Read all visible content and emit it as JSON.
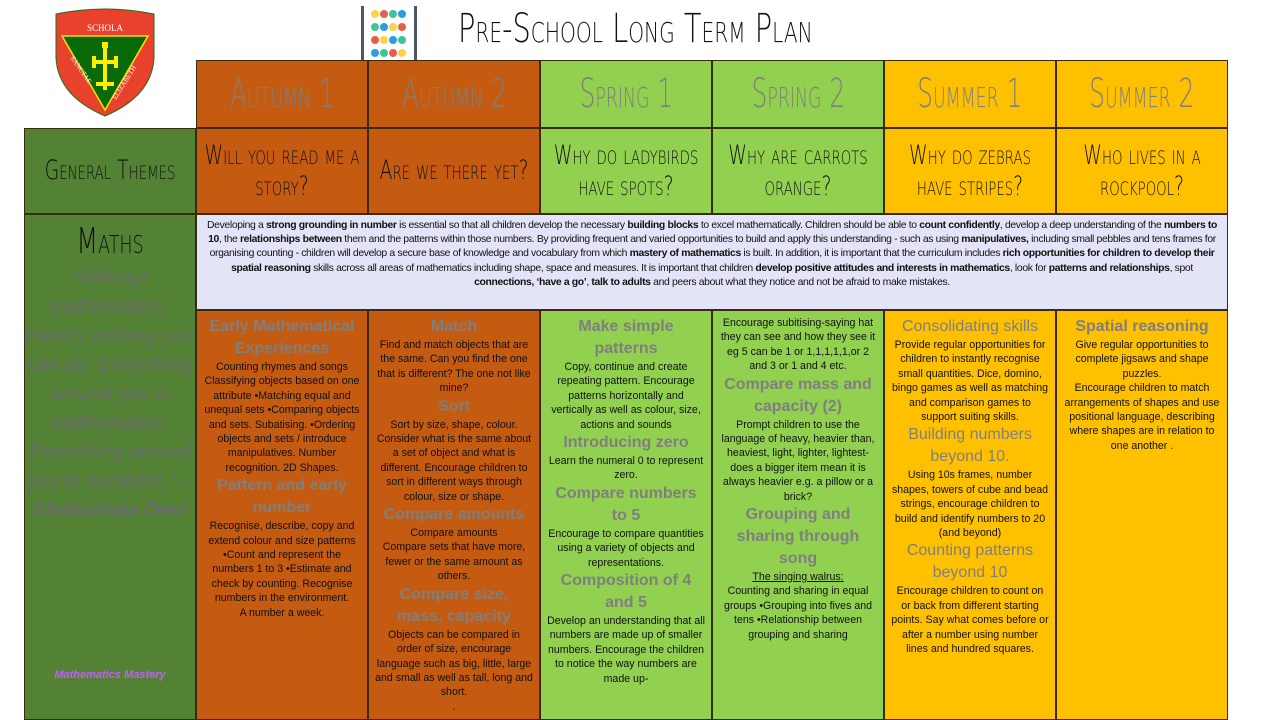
{
  "header": {
    "title": "Pre-School Long Term Plan",
    "logo_text": [
      "SCHOLA",
      "SANCTAE",
      "ELIZABETH"
    ],
    "logo_icon": "school-crest-icon",
    "decor_icon": "abacus-icon"
  },
  "colors": {
    "autumn": "#C55A11",
    "spring": "#92D050",
    "summer": "#FFC000",
    "sidebar": "#548235",
    "intro": "#E4E4F8",
    "heading": "#7F7F7F"
  },
  "terms": [
    "Autumn 1",
    "Autumn 2",
    "Spring 1",
    "Spring 2",
    "Summer 1",
    "Summer 2"
  ],
  "general_themes": {
    "label": "General Themes",
    "themes": [
      "Will you read me a story?",
      "Are we there yet?",
      "Why do ladybirds have spots?",
      "Why are carrots orange?",
      "Why do zebras have stripes?",
      "Who lives in a rockpool?"
    ]
  },
  "maths": {
    "label": "Maths",
    "quote": "“Without mathematics, there’s nothing you can do. Everything around you is mathematics. Everything around you is numbers.” –",
    "quote_author": "Shakuntala Devi",
    "source": "Mathematics Mastery",
    "intro": [
      {
        "t": "Developing a "
      },
      {
        "t": "strong grounding  in number",
        "b": true
      },
      {
        "t": " is essential so that all children develop the necessary "
      },
      {
        "t": "building blocks",
        "b": true
      },
      {
        "t": " to excel mathematically. Children should be able to "
      },
      {
        "t": "count confidently",
        "b": true
      },
      {
        "t": ",  develop a deep understanding of the "
      },
      {
        "t": "numbers to 10",
        "b": true
      },
      {
        "t": ", the "
      },
      {
        "t": "relationships  between",
        "b": true
      },
      {
        "t": "  them and the patterns within those numbers. By providing frequent and varied opportunities to build and apply this understanding - such as using "
      },
      {
        "t": "manipulatives,",
        "b": true
      },
      {
        "t": " including small pebbles and tens frames for organising counting - children will develop a secure base of knowledge and vocabulary from which "
      },
      {
        "t": "mastery of mathematics",
        "b": true
      },
      {
        "t": " is built. In addition, it is important that the curriculum includes "
      },
      {
        "t": "rich opportunities  for children to develop their spatial reasoning",
        "b": true
      },
      {
        "t": "  skills across all areas of mathematics including shape, space and measures. It is important that children "
      },
      {
        "t": "develop positive attitudes  and  interests in mathematics",
        "b": true
      },
      {
        "t": ",  look for "
      },
      {
        "t": "patterns and relationships",
        "b": true
      },
      {
        "t": ",  spot "
      },
      {
        "t": "connections, ‘have a go’",
        "b": true
      },
      {
        "t": ", "
      },
      {
        "t": "talk to adults",
        "b": true
      },
      {
        "t": " and peers about what they notice and not be afraid to make mistakes."
      }
    ],
    "columns": [
      [
        {
          "h": "Early Mathematical Experiences"
        },
        {
          "p": "Counting rhymes and songs Classifying objects based on one attribute •Matching equal and unequal sets •Comparing objects and sets. Subatising. •Ordering objects and sets / introduce manipulatives. Number recognition. 2D Shapes."
        },
        {
          "h": "Pattern and early number"
        },
        {
          "p": "Recognise, describe, copy and extend colour and size patterns •Count and represent the numbers 1 to 3 •Estimate and check by counting. Recognise numbers in the environment."
        },
        {
          "p": "A number a week."
        }
      ],
      [
        {
          "h": "Match"
        },
        {
          "p": "Find and match objects that are the same. Can you find the one that is different? The one not like mine?"
        },
        {
          "h": "Sort"
        },
        {
          "p": "Sort by size, shape, colour. Consider what is the same about a set of object and what is different. Encourage children to sort in different ways through colour, size or shape."
        },
        {
          "h": "Compare amounts"
        },
        {
          "p": "Compare amounts"
        },
        {
          "p": "Compare sets that have more, fewer or the same amount as others."
        },
        {
          "h": "Compare size, mass, capacity"
        },
        {
          "p": "Objects can be compared in order of size, encourage language such as big, little, large and small as well as tall, long and short."
        },
        {
          "p": "."
        }
      ],
      [
        {
          "h": "Make simple patterns"
        },
        {
          "p": "Copy, continue and create repeating pattern. Encourage patterns horizontally and vertically as well as colour, size, actions and sounds"
        },
        {
          "h": "Introducing zero"
        },
        {
          "p": "Learn the numeral 0 to represent zero."
        },
        {
          "h": "Compare numbers to 5"
        },
        {
          "p": "Encourage to compare quantities using a variety of objects and representations."
        },
        {
          "h": "Composition of 4 and 5"
        },
        {
          "p": "Develop an understanding that all numbers are made up of smaller numbers. Encourage the children to notice the way numbers are made up-"
        }
      ],
      [
        {
          "p": "Encourage subitising-saying hat they can see and how they see it eg 5 can be 1 or 1,1,1,1,1,or 2 and 3 or 1 and 4 etc."
        },
        {
          "h": "Compare mass and capacity (2)"
        },
        {
          "p": "Prompt children to use the language of heavy, heavier than, heaviest, light, lighter, lightest- does a bigger item mean it is always heavier e.g. a pillow or a brick?"
        },
        {
          "h": "Grouping and sharing through song"
        },
        {
          "u": "The singing walrus:"
        },
        {
          "p": "Counting and sharing in equal groups •Grouping into fives and tens •Relationship between grouping and sharing"
        }
      ],
      [
        {
          "hl": "Consolidating skills"
        },
        {
          "p": "Provide regular opportunities for children to instantly recognise small quantities. Dice, domino, bingo games as well as matching and comparison games to support suiting skills."
        },
        {
          "hl": "Building numbers beyond 10."
        },
        {
          "p": "Using 10s frames, number shapes, towers of cube and bead strings, encourage children to build and identify numbers to 20 (and beyond)"
        },
        {
          "hl": "Counting patterns beyond 10"
        },
        {
          "p": "Encourage children to count on or back from different starting points. Say what comes before or after a number using number lines and hundred squares."
        }
      ],
      [
        {
          "h": "Spatial reasoning"
        },
        {
          "p": "Give regular opportunities to complete jigsaws and shape puzzles."
        },
        {
          "p": "Encourage children to match arrangements of shapes and use positional language, describing where shapes are in relation to one another ."
        }
      ]
    ]
  }
}
